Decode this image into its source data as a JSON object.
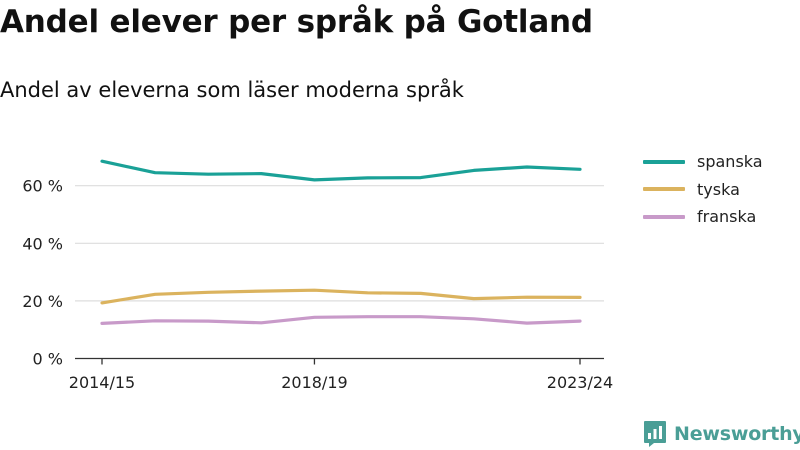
{
  "header": {
    "title": "Andel elever per språk på Gotland",
    "subtitle": "Andel av eleverna som läser moderna språk"
  },
  "brand": {
    "name": "Newsworthy",
    "color": "#4a9e96"
  },
  "chart_data": {
    "type": "line",
    "x": [
      "2014/15",
      "2015/16",
      "2016/17",
      "2017/18",
      "2018/19",
      "2019/20",
      "2020/21",
      "2021/22",
      "2022/23",
      "2023/24"
    ],
    "x_tick_labels": [
      "2014/15",
      "2018/19",
      "2023/24"
    ],
    "y_ticks": [
      0,
      20,
      40,
      60
    ],
    "y_tick_labels": [
      "0 %",
      "20 %",
      "40 %",
      "60 %"
    ],
    "ylim": [
      0,
      70
    ],
    "grid": "horizontal",
    "legend_position": "right",
    "series": [
      {
        "name": "spanska",
        "color": "#1aa197",
        "values": [
          68.5,
          64.5,
          64.0,
          64.2,
          62.0,
          62.7,
          62.8,
          65.3,
          66.5,
          65.7
        ]
      },
      {
        "name": "tyska",
        "color": "#dbb35e",
        "values": [
          19.3,
          22.3,
          23.0,
          23.4,
          23.7,
          22.8,
          22.6,
          20.8,
          21.3,
          21.2
        ]
      },
      {
        "name": "franska",
        "color": "#c89ac9",
        "values": [
          12.2,
          13.1,
          13.0,
          12.4,
          14.3,
          14.5,
          14.5,
          13.8,
          12.3,
          13.0
        ]
      }
    ]
  }
}
